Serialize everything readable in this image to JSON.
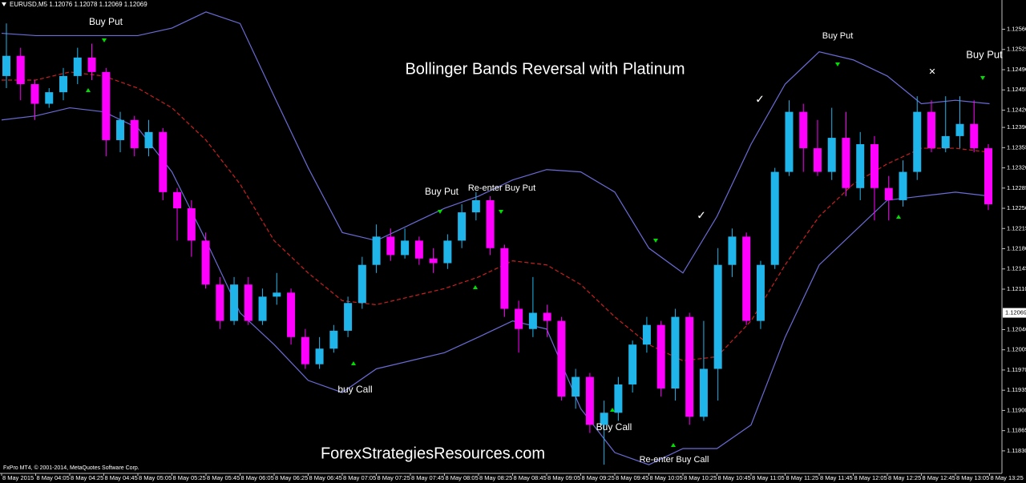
{
  "header": "EURUSD,M5  1.12076 1.12078 1.12069 1.12069",
  "copyright": "FxPro MT4, © 2001-2014, MetaQuotes Software Corp.",
  "chart_data": {
    "type": "candlestick",
    "title": "Bollinger Bands Reversal with Platinum",
    "watermark": "ForexStrategiesResources.com",
    "up_color": "#1fb5ea",
    "down_color": "#ff00ff",
    "ylim": [
      1.11791,
      1.12594
    ],
    "yticks": [
      {
        "value": 1.1256,
        "label": "1.12560"
      },
      1.12525,
      {
        "value": 1.1249,
        "label": "1.12490"
      },
      1.12455,
      {
        "value": 1.1242,
        "label": "1.12420"
      },
      {
        "value": 1.1239,
        "label": "1.12390"
      },
      1.12355,
      {
        "value": 1.1232,
        "label": "1.12320"
      },
      1.12285,
      {
        "value": 1.1225,
        "label": "1.12250"
      },
      1.12215,
      {
        "value": 1.1218,
        "label": "1.12180"
      },
      1.12145,
      {
        "value": 1.1211,
        "label": "1.12110"
      },
      {
        "value": 1.1204,
        "label": "1.12040"
      },
      1.12005,
      {
        "value": 1.1197,
        "label": "1.11970"
      },
      1.11935,
      {
        "value": 1.119,
        "label": "1.11900"
      },
      1.11865,
      {
        "value": 1.1183,
        "label": "1.11830"
      }
    ],
    "last_price": 1.12069,
    "categories": [
      "8 May 2015",
      "8 May 04:05",
      "8 May 04:25",
      "8 May 04:45",
      "8 May 05:05",
      "8 May 05:25",
      "8 May 05:45",
      "8 May 06:05",
      "8 May 06:25",
      "8 May 06:45",
      "8 May 07:05",
      "8 May 07:25",
      "8 May 07:45",
      "8 May 08:05",
      "8 May 08:25",
      "8 May 08:45",
      "8 May 09:05",
      "8 May 09:25",
      "8 May 09:45",
      "8 May 10:05",
      "8 May 10:25",
      "8 May 10:45",
      "8 May 11:05",
      "8 May 11:25",
      "8 May 11:45",
      "8 May 12:05",
      "8 May 12:25",
      "8 May 12:45",
      "8 May 13:05",
      "8 May 13:25"
    ],
    "open": [
      1.12479,
      1.12514,
      1.12465,
      1.12431,
      1.12451,
      1.12479,
      1.12511,
      1.12486,
      1.12368,
      1.12403,
      1.12354,
      1.12382,
      1.12278,
      1.1225,
      1.12194,
      1.12118,
      1.12055,
      1.12118,
      1.12055,
      1.12097,
      1.12104,
      1.12027,
      1.1198,
      1.12007,
      1.12038,
      1.12086,
      1.12152,
      1.12201,
      1.12169,
      1.12194,
      1.12163,
      1.12155,
      1.12194,
      1.12243,
      1.12264,
      1.12181,
      1.12076,
      1.12041,
      1.12069,
      1.12055,
      1.11924,
      1.11958,
      1.11875,
      1.11896,
      1.11945,
      1.12014,
      1.12048,
      1.11938,
      1.12062,
      1.11889,
      1.11972,
      1.12152,
      1.12201,
      1.12055,
      1.12152,
      1.12313,
      1.12417,
      1.12354,
      1.12313,
      1.12372,
      1.12285,
      1.12361,
      1.12285,
      1.12264,
      1.12313,
      1.12417,
      1.12354,
      1.12375,
      1.12396,
      1.12354
    ],
    "high": [
      1.1257,
      1.12528,
      1.12472,
      1.12458,
      1.12493,
      1.12528,
      1.12535,
      1.12493,
      1.12417,
      1.1241,
      1.12403,
      1.12389,
      1.12285,
      1.12264,
      1.12208,
      1.12131,
      1.12131,
      1.12131,
      1.12111,
      1.12138,
      1.12111,
      1.12041,
      1.12027,
      1.12048,
      1.12097,
      1.12166,
      1.12222,
      1.12215,
      1.12215,
      1.12201,
      1.12181,
      1.12205,
      1.12257,
      1.12278,
      1.12271,
      1.12187,
      1.1209,
      1.12131,
      1.12083,
      1.12062,
      1.11972,
      1.11965,
      1.11917,
      1.11958,
      1.12021,
      1.12062,
      1.12055,
      1.12076,
      1.12069,
      1.12055,
      1.12181,
      1.12215,
      1.12208,
      1.12159,
      1.1232,
      1.12437,
      1.12431,
      1.12403,
      1.12424,
      1.12417,
      1.12382,
      1.12375,
      1.12306,
      1.12333,
      1.12444,
      1.12437,
      1.12444,
      1.12444,
      1.12437,
      1.12361
    ],
    "low": [
      1.12458,
      1.12437,
      1.12403,
      1.12424,
      1.12437,
      1.12465,
      1.12472,
      1.1234,
      1.12347,
      1.1234,
      1.1234,
      1.12264,
      1.12194,
      1.12166,
      1.12111,
      1.12041,
      1.12048,
      1.12048,
      1.12048,
      1.12083,
      1.12014,
      1.11972,
      1.11972,
      1.12,
      1.12027,
      1.12076,
      1.12138,
      1.12159,
      1.12163,
      1.12152,
      1.12138,
      1.12145,
      1.12181,
      1.12229,
      1.12169,
      1.12062,
      1.12,
      1.12027,
      1.12027,
      1.11917,
      1.11903,
      1.11861,
      1.11806,
      1.11882,
      1.11931,
      1.12,
      1.11924,
      1.11917,
      1.11875,
      1.11882,
      1.11917,
      1.12131,
      1.12048,
      1.12041,
      1.12145,
      1.12306,
      1.12313,
      1.12306,
      1.12299,
      1.12271,
      1.12264,
      1.12229,
      1.12229,
      1.12253,
      1.12299,
      1.12347,
      1.12347,
      1.12354,
      1.12347,
      1.12247
    ],
    "close": [
      1.12514,
      1.12465,
      1.12431,
      1.12451,
      1.12479,
      1.12511,
      1.12486,
      1.12368,
      1.12403,
      1.12354,
      1.12382,
      1.12278,
      1.1225,
      1.12194,
      1.12118,
      1.12055,
      1.12118,
      1.12055,
      1.12097,
      1.12104,
      1.12027,
      1.1198,
      1.12007,
      1.12038,
      1.12086,
      1.12152,
      1.12201,
      1.12169,
      1.12194,
      1.12163,
      1.12155,
      1.12194,
      1.12243,
      1.12264,
      1.12181,
      1.12076,
      1.12041,
      1.12069,
      1.12055,
      1.11924,
      1.11958,
      1.11875,
      1.11896,
      1.11945,
      1.12014,
      1.12048,
      1.11938,
      1.12062,
      1.11889,
      1.11972,
      1.12152,
      1.12201,
      1.12055,
      1.12152,
      1.12313,
      1.12417,
      1.12354,
      1.12313,
      1.12372,
      1.12285,
      1.12361,
      1.12285,
      1.12264,
      1.12313,
      1.12417,
      1.12354,
      1.12375,
      1.12396,
      1.12354,
      1.12257
    ],
    "upper_band": {
      "color": "#6b6bd6",
      "values": [
        1.12553,
        1.12549,
        1.12549,
        1.12549,
        1.12549,
        1.12562,
        1.1259,
        1.1257,
        1.12444,
        1.1232,
        1.12208,
        1.12194,
        1.12222,
        1.1225,
        1.12271,
        1.12299,
        1.12317,
        1.12313,
        1.12278,
        1.12181,
        1.12138,
        1.12236,
        1.12361,
        1.12465,
        1.12521,
        1.12507,
        1.12479,
        1.12431,
        1.12437,
        1.12431
      ]
    },
    "middle_band": {
      "color": "#cc2020",
      "values": [
        1.12472,
        1.12472,
        1.12486,
        1.12479,
        1.12458,
        1.12424,
        1.12368,
        1.12292,
        1.12194,
        1.12138,
        1.1209,
        1.12083,
        1.12097,
        1.12111,
        1.12131,
        1.12159,
        1.12152,
        1.12118,
        1.12062,
        1.12014,
        1.11986,
        1.11993,
        1.12055,
        1.12152,
        1.12236,
        1.12292,
        1.12327,
        1.12354,
        1.12354,
        1.12347
      ]
    },
    "lower_band": {
      "color": "#6b6bd6",
      "values": [
        1.12403,
        1.1241,
        1.12424,
        1.12417,
        1.12389,
        1.12313,
        1.12194,
        1.12069,
        1.12014,
        1.11952,
        1.11931,
        1.11972,
        1.11986,
        1.12,
        1.12027,
        1.12055,
        1.12041,
        1.11903,
        1.11827,
        1.11806,
        1.11834,
        1.11834,
        1.11875,
        1.12027,
        1.12152,
        1.12208,
        1.12264,
        1.12271,
        1.12278,
        1.12271
      ]
    },
    "annotations": [
      "Buy Put",
      "Buy Put",
      "Re-enter Buy Put",
      "buy Call",
      "Buy Call",
      "Re-enter Buy Call",
      "Buy Put",
      "Buy Put",
      "✓",
      "✓",
      "✕"
    ]
  }
}
